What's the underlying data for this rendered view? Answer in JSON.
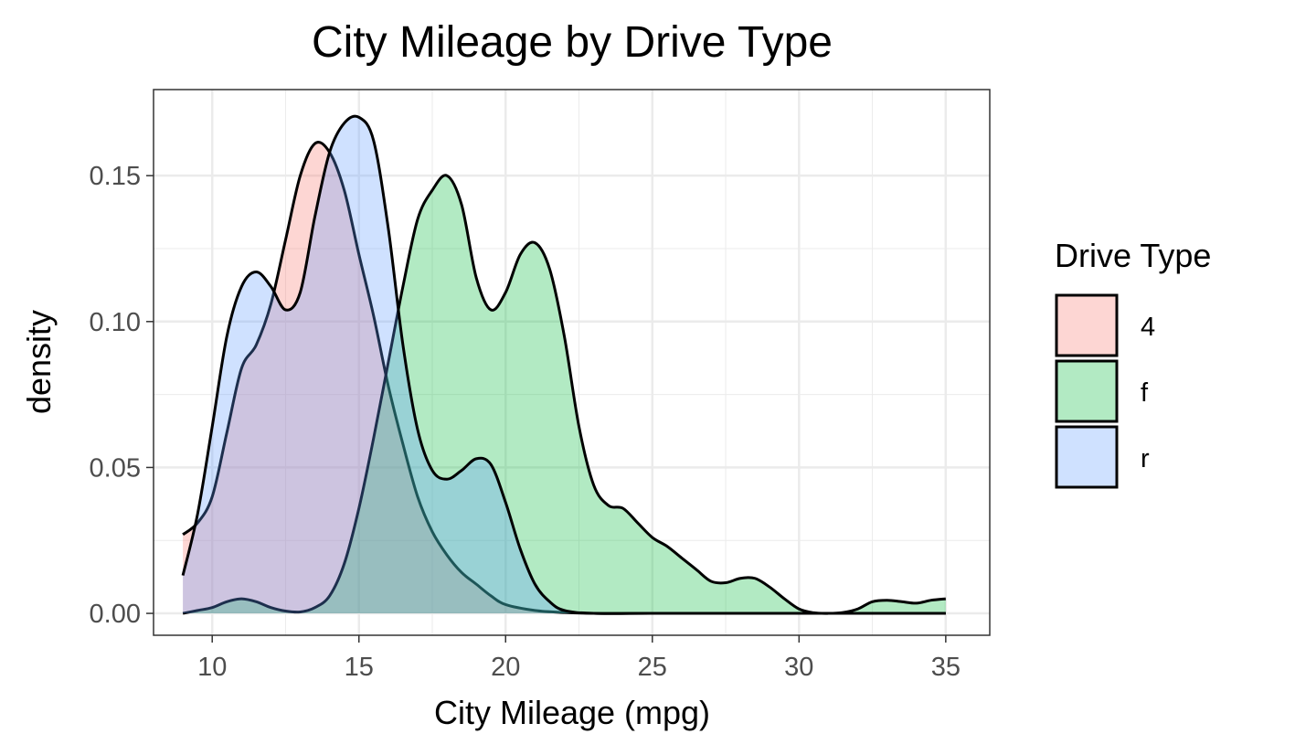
{
  "chart_data": {
    "type": "area",
    "subtype": "density",
    "title": "City Mileage by Drive Type",
    "xlabel": "City Mileage (mpg)",
    "ylabel": "density",
    "xlim": [
      8.0,
      36.5
    ],
    "ylim": [
      -0.0075,
      0.1795
    ],
    "x_ticks": [
      10,
      15,
      20,
      25,
      30,
      35
    ],
    "x_tick_labels": [
      "10",
      "15",
      "20",
      "25",
      "30",
      "35"
    ],
    "y_ticks": [
      0.0,
      0.05,
      0.1,
      0.15
    ],
    "y_tick_labels": [
      "0.00",
      "0.05",
      "0.10",
      "0.15"
    ],
    "grid": true,
    "legend": {
      "title": "Drive Type",
      "position": "right"
    },
    "series": [
      {
        "name": "4",
        "color": "#F8766D",
        "points": [
          [
            9,
            0.027
          ],
          [
            9.5,
            0.031
          ],
          [
            10,
            0.04
          ],
          [
            10.5,
            0.062
          ],
          [
            11,
            0.084
          ],
          [
            11.5,
            0.092
          ],
          [
            12,
            0.106
          ],
          [
            12.5,
            0.128
          ],
          [
            13,
            0.15
          ],
          [
            13.5,
            0.161
          ],
          [
            14,
            0.158
          ],
          [
            14.5,
            0.145
          ],
          [
            15,
            0.123
          ],
          [
            15.5,
            0.102
          ],
          [
            16,
            0.078
          ],
          [
            16.5,
            0.058
          ],
          [
            17,
            0.04
          ],
          [
            17.5,
            0.028
          ],
          [
            18,
            0.02
          ],
          [
            18.5,
            0.014
          ],
          [
            19,
            0.01
          ],
          [
            19.5,
            0.006
          ],
          [
            20,
            0.003
          ],
          [
            21,
            0.001
          ],
          [
            22,
            0.0003
          ],
          [
            23,
            0
          ],
          [
            25,
            0
          ],
          [
            30,
            0
          ],
          [
            35,
            0
          ]
        ]
      },
      {
        "name": "f",
        "color": "#00BA38",
        "points": [
          [
            9,
            0
          ],
          [
            9.5,
            0.001
          ],
          [
            10,
            0.002
          ],
          [
            10.5,
            0.004
          ],
          [
            11,
            0.005
          ],
          [
            11.5,
            0.004
          ],
          [
            12,
            0.002
          ],
          [
            12.5,
            0.0008
          ],
          [
            13,
            0.0005
          ],
          [
            13.5,
            0.002
          ],
          [
            14,
            0.006
          ],
          [
            14.5,
            0.017
          ],
          [
            15,
            0.036
          ],
          [
            15.5,
            0.06
          ],
          [
            16,
            0.086
          ],
          [
            16.5,
            0.112
          ],
          [
            17,
            0.135
          ],
          [
            17.5,
            0.145
          ],
          [
            18,
            0.15
          ],
          [
            18.5,
            0.14
          ],
          [
            19,
            0.115
          ],
          [
            19.5,
            0.104
          ],
          [
            20,
            0.11
          ],
          [
            20.5,
            0.123
          ],
          [
            21,
            0.127
          ],
          [
            21.5,
            0.118
          ],
          [
            22,
            0.095
          ],
          [
            22.5,
            0.064
          ],
          [
            23,
            0.044
          ],
          [
            23.5,
            0.037
          ],
          [
            24,
            0.036
          ],
          [
            24.5,
            0.031
          ],
          [
            25,
            0.026
          ],
          [
            25.5,
            0.023
          ],
          [
            26,
            0.019
          ],
          [
            26.5,
            0.015
          ],
          [
            27,
            0.011
          ],
          [
            27.5,
            0.0105
          ],
          [
            28,
            0.012
          ],
          [
            28.5,
            0.012
          ],
          [
            29,
            0.009
          ],
          [
            29.5,
            0.005
          ],
          [
            30,
            0.0015
          ],
          [
            30.5,
            0.0002
          ],
          [
            31,
            0
          ],
          [
            31.5,
            0.0003
          ],
          [
            32,
            0.0015
          ],
          [
            32.5,
            0.004
          ],
          [
            33,
            0.0045
          ],
          [
            33.5,
            0.004
          ],
          [
            34,
            0.0035
          ],
          [
            34.5,
            0.0045
          ],
          [
            35,
            0.005
          ]
        ]
      },
      {
        "name": "r",
        "color": "#619CFF",
        "points": [
          [
            9,
            0.013
          ],
          [
            9.5,
            0.034
          ],
          [
            10,
            0.064
          ],
          [
            10.5,
            0.095
          ],
          [
            11,
            0.112
          ],
          [
            11.5,
            0.117
          ],
          [
            12,
            0.112
          ],
          [
            12.5,
            0.104
          ],
          [
            13,
            0.11
          ],
          [
            13.5,
            0.136
          ],
          [
            14,
            0.158
          ],
          [
            14.5,
            0.168
          ],
          [
            15,
            0.17
          ],
          [
            15.5,
            0.162
          ],
          [
            16,
            0.132
          ],
          [
            16.5,
            0.092
          ],
          [
            17,
            0.063
          ],
          [
            17.5,
            0.049
          ],
          [
            18,
            0.046
          ],
          [
            18.5,
            0.049
          ],
          [
            19,
            0.053
          ],
          [
            19.5,
            0.051
          ],
          [
            20,
            0.038
          ],
          [
            20.5,
            0.022
          ],
          [
            21,
            0.01
          ],
          [
            21.5,
            0.004
          ],
          [
            22,
            0.001
          ],
          [
            23,
            0
          ],
          [
            25,
            0
          ],
          [
            30,
            0
          ],
          [
            35,
            0
          ]
        ]
      }
    ]
  }
}
